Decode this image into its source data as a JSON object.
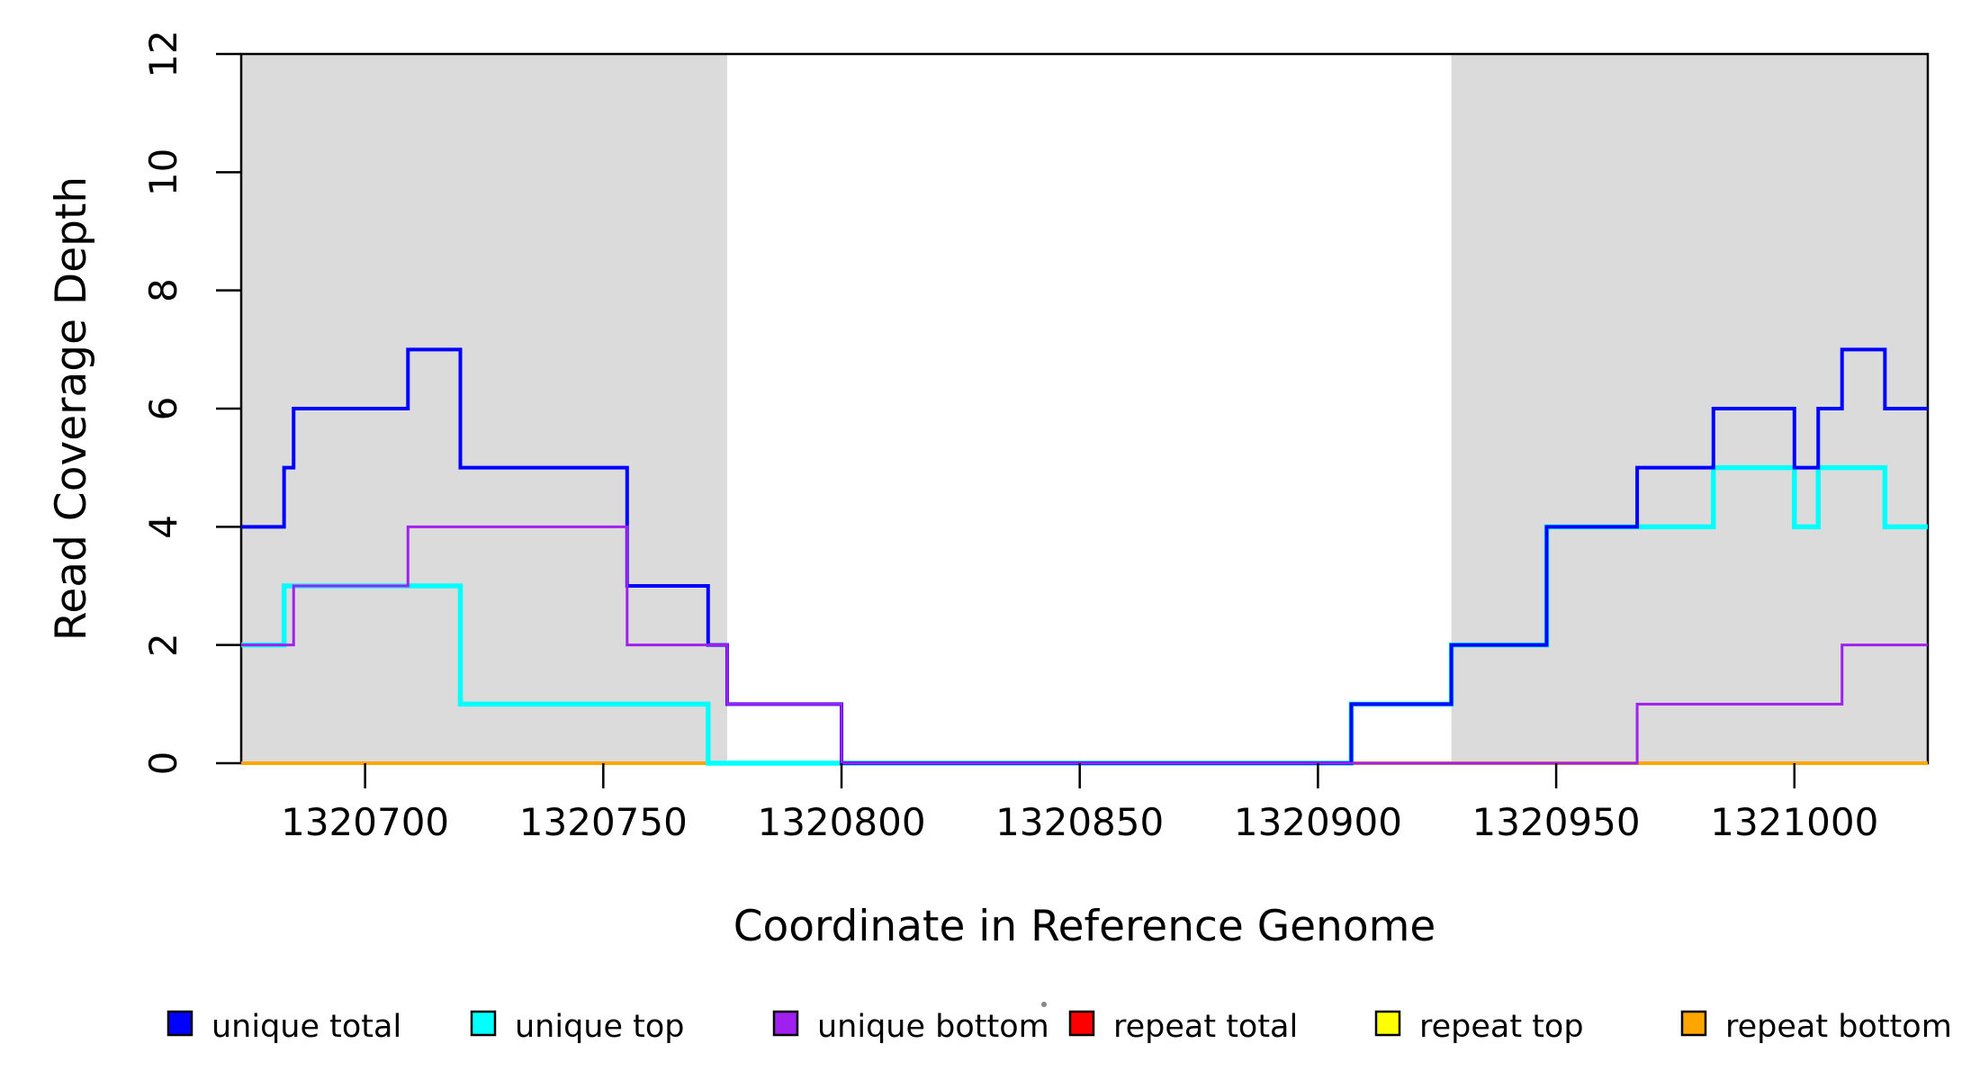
{
  "chart_data": {
    "type": "line",
    "subtype": "step-coverage-plot",
    "title": "",
    "xlabel": "Coordinate in Reference Genome",
    "ylabel": "Read Coverage Depth",
    "xlim": [
      1320674,
      1321028
    ],
    "ylim": [
      0,
      12
    ],
    "x_ticks": [
      1320700,
      1320750,
      1320800,
      1320850,
      1320900,
      1320950,
      1321000
    ],
    "y_ticks": [
      0,
      2,
      4,
      6,
      8,
      10,
      12
    ],
    "grid": false,
    "step_mode": "step-after",
    "legend_position": "bottom",
    "background_color": "#FFFFFF",
    "shaded_region_color": "#DBDBDB",
    "shaded_regions": [
      {
        "x0": 1320674,
        "x1": 1320776
      },
      {
        "x0": 1320928,
        "x1": 1321028
      }
    ],
    "series": [
      {
        "name": "repeat total",
        "color": "#FF0000",
        "width": 4,
        "steps": [
          [
            1320674,
            0
          ],
          [
            1321028,
            0
          ]
        ]
      },
      {
        "name": "repeat top",
        "color": "#FFFF00",
        "width": 4,
        "steps": [
          [
            1320674,
            0
          ],
          [
            1321028,
            0
          ]
        ]
      },
      {
        "name": "repeat bottom",
        "color": "#FFA500",
        "width": 4,
        "steps": [
          [
            1320674,
            0
          ],
          [
            1321028,
            0
          ]
        ]
      },
      {
        "name": "unique top",
        "color": "#00FFFF",
        "width": 5.5,
        "steps": [
          [
            1320674,
            2
          ],
          [
            1320683,
            3
          ],
          [
            1320720,
            1
          ],
          [
            1320772,
            0
          ],
          [
            1320907,
            1
          ],
          [
            1320928,
            2
          ],
          [
            1320948,
            4
          ],
          [
            1320983,
            5
          ],
          [
            1321000,
            4
          ],
          [
            1321005,
            5
          ],
          [
            1321019,
            4
          ],
          [
            1321028,
            4
          ]
        ]
      },
      {
        "name": "unique total",
        "color": "#0000FF",
        "width": 4,
        "steps": [
          [
            1320674,
            4
          ],
          [
            1320683,
            5
          ],
          [
            1320685,
            6
          ],
          [
            1320709,
            7
          ],
          [
            1320720,
            5
          ],
          [
            1320755,
            3
          ],
          [
            1320772,
            2
          ],
          [
            1320776,
            1
          ],
          [
            1320800,
            0
          ],
          [
            1320907,
            1
          ],
          [
            1320928,
            2
          ],
          [
            1320948,
            4
          ],
          [
            1320967,
            5
          ],
          [
            1320983,
            6
          ],
          [
            1321000,
            5
          ],
          [
            1321005,
            6
          ],
          [
            1321010,
            7
          ],
          [
            1321019,
            6
          ],
          [
            1321028,
            6
          ]
        ]
      },
      {
        "name": "unique bottom",
        "color": "#A020F0",
        "width": 3,
        "steps": [
          [
            1320674,
            2
          ],
          [
            1320685,
            3
          ],
          [
            1320709,
            4
          ],
          [
            1320755,
            2
          ],
          [
            1320776,
            1
          ],
          [
            1320800,
            0
          ],
          [
            1320967,
            1
          ],
          [
            1321010,
            2
          ],
          [
            1321028,
            2
          ]
        ]
      }
    ],
    "legend": [
      {
        "label": "unique total",
        "color": "#0000FF"
      },
      {
        "label": "unique top",
        "color": "#00FFFF"
      },
      {
        "label": "unique bottom",
        "color": "#A020F0"
      },
      {
        "label": "repeat total",
        "color": "#FF0000"
      },
      {
        "label": "repeat top",
        "color": "#FFFF00"
      },
      {
        "label": "repeat bottom",
        "color": "#FFA500"
      }
    ]
  }
}
